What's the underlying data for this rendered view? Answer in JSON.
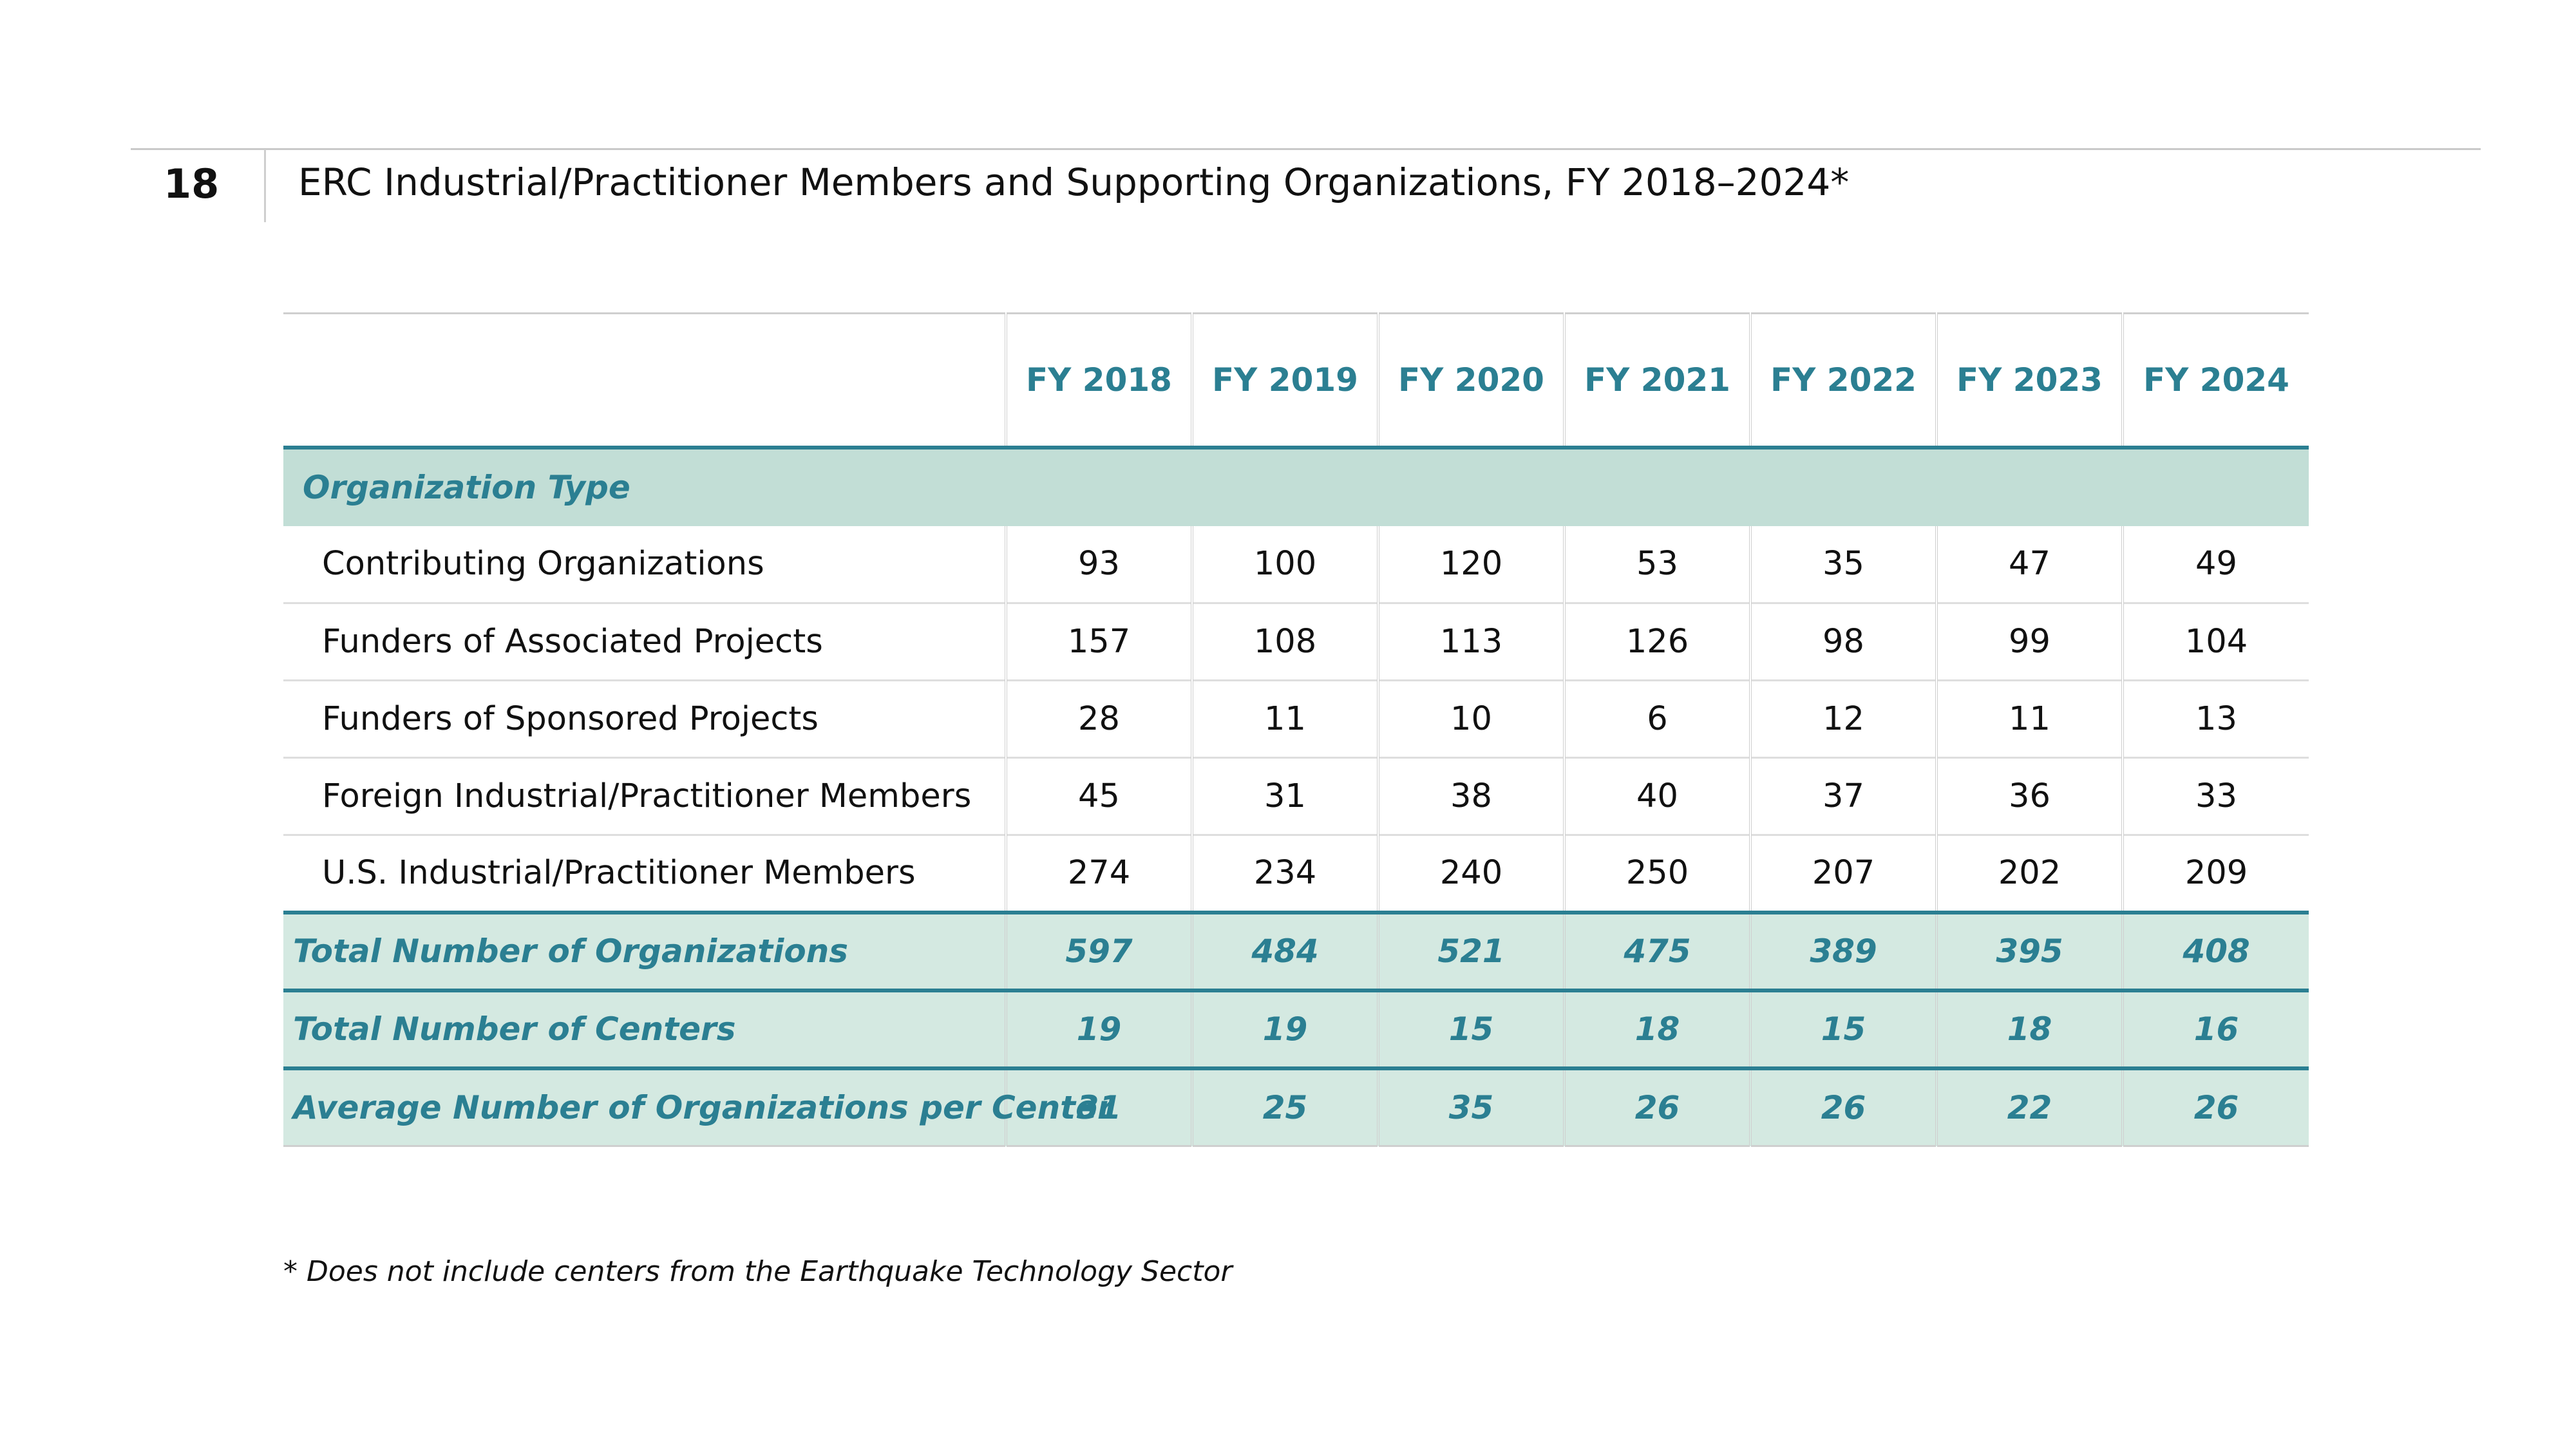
{
  "page_number": "18",
  "title": "ERC Industrial/Practitioner Members and Supporting Organizations, FY 2018–2024*",
  "table": {
    "years": [
      "FY 2018",
      "FY 2019",
      "FY 2020",
      "FY 2021",
      "FY 2022",
      "FY 2023",
      "FY 2024"
    ],
    "section_label": "Organization Type",
    "rows": [
      {
        "label": "Contributing Organizations",
        "values": [
          "93",
          "100",
          "120",
          "53",
          "35",
          "47",
          "49"
        ]
      },
      {
        "label": "Funders of Associated Projects",
        "values": [
          "157",
          "108",
          "113",
          "126",
          "98",
          "99",
          "104"
        ]
      },
      {
        "label": "Funders of Sponsored Projects",
        "values": [
          "28",
          "11",
          "10",
          "6",
          "12",
          "11",
          "13"
        ]
      },
      {
        "label": "Foreign Industrial/Practitioner Members",
        "values": [
          "45",
          "31",
          "38",
          "40",
          "37",
          "36",
          "33"
        ]
      },
      {
        "label": "U.S. Industrial/Practitioner Members",
        "values": [
          "274",
          "234",
          "240",
          "250",
          "207",
          "202",
          "209"
        ]
      }
    ],
    "totals": [
      {
        "label": "Total Number of Organizations",
        "values": [
          "597",
          "484",
          "521",
          "475",
          "389",
          "395",
          "408"
        ]
      },
      {
        "label": "Total Number of Centers",
        "values": [
          "19",
          "19",
          "15",
          "18",
          "15",
          "18",
          "16"
        ]
      },
      {
        "label": "Average Number of Organizations per Center",
        "values": [
          "31",
          "25",
          "35",
          "26",
          "26",
          "22",
          "26"
        ]
      }
    ]
  },
  "footnote": "* Does not include centers from the Earthquake Technology Sector",
  "colors": {
    "accent": "#2b7f92",
    "section_fill": "#c2ded6",
    "total_fill": "#d4e9e1"
  }
}
